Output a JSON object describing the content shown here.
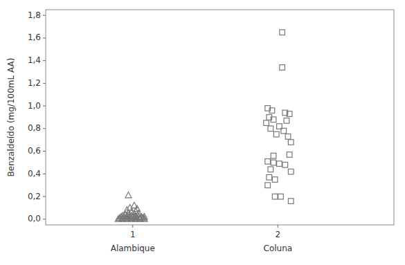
{
  "chart_data": {
    "type": "scatter",
    "ylabel": "Benzaldeído (mg/100mL AA)",
    "xlim": [
      0.4,
      2.8
    ],
    "xticks": [
      1,
      2
    ],
    "ylim": [
      -0.05,
      1.85
    ],
    "yticks": [
      {
        "value": 0.0,
        "label": "0,0"
      },
      {
        "value": 0.2,
        "label": "0,2"
      },
      {
        "value": 0.4,
        "label": "0,4"
      },
      {
        "value": 0.6,
        "label": "0,6"
      },
      {
        "value": 0.8,
        "label": "0,8"
      },
      {
        "value": 1.0,
        "label": "1,0"
      },
      {
        "value": 1.2,
        "label": "1,2"
      },
      {
        "value": 1.4,
        "label": "1,4"
      },
      {
        "value": 1.6,
        "label": "1,6"
      },
      {
        "value": 1.8,
        "label": "1,8"
      }
    ],
    "grid": false,
    "annotations": [
      {
        "text": "Alambique",
        "x": 1
      },
      {
        "text": "Coluna",
        "x": 2
      }
    ],
    "series": [
      {
        "marker": "triangle",
        "color": "#777777",
        "x": [
          0.97,
          1.01,
          0.98,
          1.03,
          0.96,
          1.02,
          0.99,
          0.97,
          1.04,
          0.95,
          1.01,
          0.93,
          0.96,
          0.99,
          1.02,
          0.92,
          0.94,
          0.96,
          0.98,
          1.0,
          1.02,
          1.04,
          1.06,
          1.08,
          0.91,
          0.93,
          0.95,
          0.97,
          0.99,
          1.01,
          1.03,
          1.05,
          1.07,
          0.9,
          0.93,
          0.96,
          0.99,
          1.02,
          1.05,
          1.08
        ],
        "values": [
          0.21,
          0.12,
          0.1,
          0.09,
          0.08,
          0.07,
          0.06,
          0.05,
          0.05,
          0.04,
          0.04,
          0.03,
          0.03,
          0.03,
          0.03,
          0.02,
          0.02,
          0.02,
          0.02,
          0.02,
          0.02,
          0.02,
          0.02,
          0.02,
          0.01,
          0.01,
          0.01,
          0.01,
          0.01,
          0.01,
          0.01,
          0.01,
          0.01,
          0.0,
          0.0,
          0.0,
          0.0,
          0.0,
          0.0,
          0.0
        ]
      },
      {
        "marker": "square",
        "color": "#777777",
        "x": [
          2.03,
          2.03,
          1.93,
          1.96,
          2.05,
          2.08,
          1.94,
          1.97,
          2.06,
          1.92,
          2.01,
          1.95,
          2.04,
          1.99,
          2.07,
          2.09,
          2.08,
          1.97,
          1.93,
          1.97,
          2.01,
          2.05,
          1.95,
          2.09,
          1.94,
          1.98,
          1.93,
          1.98,
          2.02,
          2.09
        ],
        "values": [
          1.65,
          1.34,
          0.98,
          0.96,
          0.94,
          0.93,
          0.9,
          0.88,
          0.87,
          0.85,
          0.82,
          0.8,
          0.78,
          0.75,
          0.73,
          0.68,
          0.57,
          0.56,
          0.51,
          0.5,
          0.49,
          0.48,
          0.44,
          0.42,
          0.37,
          0.35,
          0.3,
          0.2,
          0.2,
          0.16
        ]
      }
    ]
  }
}
